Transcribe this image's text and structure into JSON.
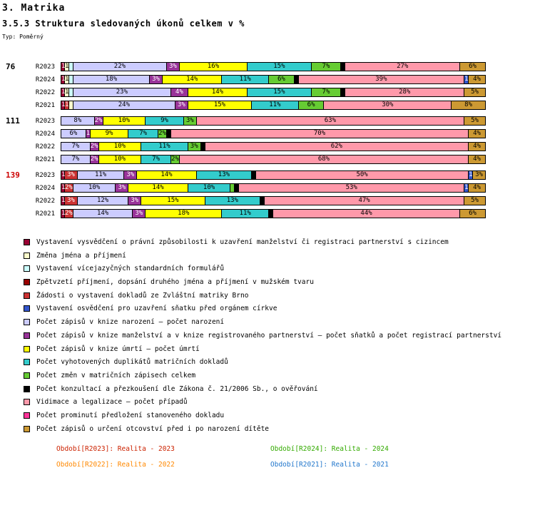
{
  "title": "3. Matrika",
  "subtitle": "3.5.3 Struktura sledovaných úkonů celkem v %",
  "type_label": "Typ: Poměrný",
  "chart_data": {
    "type": "bar",
    "stacked": true,
    "orientation": "horizontal",
    "unit": "%",
    "xlim": [
      0,
      100
    ],
    "grid": false,
    "groups": [
      {
        "label": "76",
        "label_color": "#000000",
        "rows": [
          {
            "label": "R2023",
            "segments": [
              {
                "v": 1,
                "c": "#990033",
                "l": "1"
              },
              {
                "v": 1,
                "c": "#FFFFCC",
                "l": "1"
              },
              {
                "v": 1,
                "c": "#CCFFFF",
                "l": ""
              },
              {
                "v": 22,
                "c": "#CCCCFF",
                "l": "22%"
              },
              {
                "v": 3,
                "c": "#993399",
                "l": "3%"
              },
              {
                "v": 16,
                "c": "#FFFF00",
                "l": "16%"
              },
              {
                "v": 15,
                "c": "#33CCCC",
                "l": "15%"
              },
              {
                "v": 7,
                "c": "#66CC33",
                "l": "7%"
              },
              {
                "v": 1,
                "c": "#000000",
                "l": ""
              },
              {
                "v": 27,
                "c": "#FF99AA",
                "l": "27%"
              },
              {
                "v": 6,
                "c": "#CC9933",
                "l": "6%"
              }
            ]
          },
          {
            "label": "R2024",
            "segments": [
              {
                "v": 1,
                "c": "#990033",
                "l": "1"
              },
              {
                "v": 1,
                "c": "#FFFFCC",
                "l": "1"
              },
              {
                "v": 1,
                "c": "#CCFFFF",
                "l": ""
              },
              {
                "v": 18,
                "c": "#CCCCFF",
                "l": "18%"
              },
              {
                "v": 3,
                "c": "#993399",
                "l": "3%"
              },
              {
                "v": 14,
                "c": "#FFFF00",
                "l": "14%"
              },
              {
                "v": 11,
                "c": "#33CCCC",
                "l": "11%"
              },
              {
                "v": 6,
                "c": "#66CC33",
                "l": "6%"
              },
              {
                "v": 1,
                "c": "#000000",
                "l": ""
              },
              {
                "v": 39,
                "c": "#FF99AA",
                "l": "39%"
              },
              {
                "v": 1,
                "c": "#3355CC",
                "l": "1"
              },
              {
                "v": 4,
                "c": "#CC9933",
                "l": "4%"
              }
            ]
          },
          {
            "label": "R2022",
            "segments": [
              {
                "v": 1,
                "c": "#990033",
                "l": "1"
              },
              {
                "v": 1,
                "c": "#FFFFCC",
                "l": "1"
              },
              {
                "v": 1,
                "c": "#CCFFFF",
                "l": ""
              },
              {
                "v": 23,
                "c": "#CCCCFF",
                "l": "23%"
              },
              {
                "v": 4,
                "c": "#993399",
                "l": "4%"
              },
              {
                "v": 14,
                "c": "#FFFF00",
                "l": "14%"
              },
              {
                "v": 15,
                "c": "#33CCCC",
                "l": "15%"
              },
              {
                "v": 7,
                "c": "#66CC33",
                "l": "7%"
              },
              {
                "v": 1,
                "c": "#000000",
                "l": ""
              },
              {
                "v": 28,
                "c": "#FF99AA",
                "l": "28%"
              },
              {
                "v": 5,
                "c": "#CC9933",
                "l": "5%"
              }
            ]
          },
          {
            "label": "R2021",
            "segments": [
              {
                "v": 1,
                "c": "#990033",
                "l": "1"
              },
              {
                "v": 1,
                "c": "#CC3333",
                "l": "1"
              },
              {
                "v": 1,
                "c": "#FFFFCC",
                "l": ""
              },
              {
                "v": 24,
                "c": "#CCCCFF",
                "l": "24%"
              },
              {
                "v": 3,
                "c": "#993399",
                "l": "3%"
              },
              {
                "v": 15,
                "c": "#FFFF00",
                "l": "15%"
              },
              {
                "v": 11,
                "c": "#33CCCC",
                "l": "11%"
              },
              {
                "v": 6,
                "c": "#66CC33",
                "l": "6%"
              },
              {
                "v": 30,
                "c": "#FF99AA",
                "l": "30%"
              },
              {
                "v": 8,
                "c": "#CC9933",
                "l": "8%"
              }
            ]
          }
        ]
      },
      {
        "label": "111",
        "label_color": "#000000",
        "rows": [
          {
            "label": "R2023",
            "segments": [
              {
                "v": 8,
                "c": "#CCCCFF",
                "l": "8%"
              },
              {
                "v": 2,
                "c": "#993399",
                "l": "2%"
              },
              {
                "v": 10,
                "c": "#FFFF00",
                "l": "10%"
              },
              {
                "v": 9,
                "c": "#33CCCC",
                "l": "9%"
              },
              {
                "v": 3,
                "c": "#66CC33",
                "l": "3%"
              },
              {
                "v": 63,
                "c": "#FF99AA",
                "l": "63%"
              },
              {
                "v": 5,
                "c": "#CC9933",
                "l": "5%"
              }
            ]
          },
          {
            "label": "R2024",
            "segments": [
              {
                "v": 6,
                "c": "#CCCCFF",
                "l": "6%"
              },
              {
                "v": 1,
                "c": "#993399",
                "l": "1"
              },
              {
                "v": 9,
                "c": "#FFFF00",
                "l": "9%"
              },
              {
                "v": 7,
                "c": "#33CCCC",
                "l": "7%"
              },
              {
                "v": 2,
                "c": "#66CC33",
                "l": "2%"
              },
              {
                "v": 1,
                "c": "#000000",
                "l": ""
              },
              {
                "v": 70,
                "c": "#FF99AA",
                "l": "70%"
              },
              {
                "v": 4,
                "c": "#CC9933",
                "l": "4%"
              }
            ]
          },
          {
            "label": "R2022",
            "segments": [
              {
                "v": 7,
                "c": "#CCCCFF",
                "l": "7%"
              },
              {
                "v": 2,
                "c": "#993399",
                "l": "2%"
              },
              {
                "v": 10,
                "c": "#FFFF00",
                "l": "10%"
              },
              {
                "v": 11,
                "c": "#33CCCC",
                "l": "11%"
              },
              {
                "v": 3,
                "c": "#66CC33",
                "l": "3%"
              },
              {
                "v": 1,
                "c": "#000000",
                "l": ""
              },
              {
                "v": 62,
                "c": "#FF99AA",
                "l": "62%"
              },
              {
                "v": 4,
                "c": "#CC9933",
                "l": "4%"
              }
            ]
          },
          {
            "label": "R2021",
            "segments": [
              {
                "v": 7,
                "c": "#CCCCFF",
                "l": "7%"
              },
              {
                "v": 2,
                "c": "#993399",
                "l": "2%"
              },
              {
                "v": 10,
                "c": "#FFFF00",
                "l": "10%"
              },
              {
                "v": 7,
                "c": "#33CCCC",
                "l": "7%"
              },
              {
                "v": 2,
                "c": "#66CC33",
                "l": "2%"
              },
              {
                "v": 68,
                "c": "#FF99AA",
                "l": "68%"
              },
              {
                "v": 4,
                "c": "#CC9933",
                "l": "4%"
              }
            ]
          }
        ]
      },
      {
        "label": "139",
        "label_color": "#CC0000",
        "rows": [
          {
            "label": "R2023",
            "segments": [
              {
                "v": 1,
                "c": "#990033",
                "l": "1"
              },
              {
                "v": 3,
                "c": "#CC3333",
                "l": "3%"
              },
              {
                "v": 11,
                "c": "#CCCCFF",
                "l": "11%"
              },
              {
                "v": 3,
                "c": "#993399",
                "l": "3%"
              },
              {
                "v": 14,
                "c": "#FFFF00",
                "l": "14%"
              },
              {
                "v": 13,
                "c": "#33CCCC",
                "l": "13%"
              },
              {
                "v": 1,
                "c": "#000000",
                "l": ""
              },
              {
                "v": 50,
                "c": "#FF99AA",
                "l": "50%"
              },
              {
                "v": 1,
                "c": "#3355CC",
                "l": "1"
              },
              {
                "v": 3,
                "c": "#CC9933",
                "l": "3%"
              }
            ]
          },
          {
            "label": "R2024",
            "segments": [
              {
                "v": 1,
                "c": "#990033",
                "l": "1"
              },
              {
                "v": 2,
                "c": "#CC3333",
                "l": "2%"
              },
              {
                "v": 10,
                "c": "#CCCCFF",
                "l": "10%"
              },
              {
                "v": 3,
                "c": "#993399",
                "l": "3%"
              },
              {
                "v": 14,
                "c": "#FFFF00",
                "l": "14%"
              },
              {
                "v": 10,
                "c": "#33CCCC",
                "l": "10%"
              },
              {
                "v": 1,
                "c": "#66CC33",
                "l": ""
              },
              {
                "v": 1,
                "c": "#000000",
                "l": ""
              },
              {
                "v": 53,
                "c": "#FF99AA",
                "l": "53%"
              },
              {
                "v": 1,
                "c": "#3355CC",
                "l": "1"
              },
              {
                "v": 4,
                "c": "#CC9933",
                "l": "4%"
              }
            ]
          },
          {
            "label": "R2022",
            "segments": [
              {
                "v": 1,
                "c": "#990033",
                "l": "1"
              },
              {
                "v": 3,
                "c": "#CC3333",
                "l": "3%"
              },
              {
                "v": 12,
                "c": "#CCCCFF",
                "l": "12%"
              },
              {
                "v": 3,
                "c": "#993399",
                "l": "3%"
              },
              {
                "v": 15,
                "c": "#FFFF00",
                "l": "15%"
              },
              {
                "v": 13,
                "c": "#33CCCC",
                "l": "13%"
              },
              {
                "v": 1,
                "c": "#000000",
                "l": ""
              },
              {
                "v": 47,
                "c": "#FF99AA",
                "l": "47%"
              },
              {
                "v": 5,
                "c": "#CC9933",
                "l": "5%"
              }
            ]
          },
          {
            "label": "R2021",
            "segments": [
              {
                "v": 1,
                "c": "#990033",
                "l": "1"
              },
              {
                "v": 2,
                "c": "#CC3333",
                "l": "2%"
              },
              {
                "v": 14,
                "c": "#CCCCFF",
                "l": "14%"
              },
              {
                "v": 3,
                "c": "#993399",
                "l": "3%"
              },
              {
                "v": 18,
                "c": "#FFFF00",
                "l": "18%"
              },
              {
                "v": 11,
                "c": "#33CCCC",
                "l": "11%"
              },
              {
                "v": 1,
                "c": "#000000",
                "l": ""
              },
              {
                "v": 44,
                "c": "#FF99AA",
                "l": "44%"
              },
              {
                "v": 6,
                "c": "#CC9933",
                "l": "6%"
              }
            ]
          }
        ]
      }
    ],
    "legend": [
      {
        "label": "Vystavení vysvědčení o právní způsobilosti k uzavření manželství či registraci partnerství s cizincem",
        "color": "#990033"
      },
      {
        "label": "Změna jména a příjmení",
        "color": "#FFFFCC"
      },
      {
        "label": "Vystavení vícejazyčných standardních formulářů",
        "color": "#CCFFFF"
      },
      {
        "label": "Zpětvzetí příjmení, dopsání druhého jména a příjmení v mužském tvaru",
        "color": "#990000"
      },
      {
        "label": "Žádosti o vystavení dokladů ze Zvláštní matriky Brno",
        "color": "#CC3333"
      },
      {
        "label": "Vystavení osvědčení pro uzavření sňatku před orgánem církve",
        "color": "#3355CC"
      },
      {
        "label": "Počet zápisů v knize narození – počet narození",
        "color": "#CCCCFF"
      },
      {
        "label": "Počet zápisů v knize manželství a v knize registrovaného partnerství – počet sňatků a počet registrací partnerství",
        "color": "#993399"
      },
      {
        "label": "Počet zápisů v knize úmrtí – počet úmrtí",
        "color": "#FFFF00"
      },
      {
        "label": "Počet vyhotovených duplikátů matričních dokladů",
        "color": "#33CCCC"
      },
      {
        "label": "Počet změn v matričních zápisech celkem",
        "color": "#66CC33"
      },
      {
        "label": "Počet  konzultací a přezkoušení dle Zákona č. 21/2006 Sb., o ověřování",
        "color": "#000000"
      },
      {
        "label": "Vidimace a legalizace – počet případů",
        "color": "#FF99AA"
      },
      {
        "label": "Počet prominutí předložení stanoveného dokladu",
        "color": "#FF3399"
      },
      {
        "label": "Počet zápisů o určení otcovství před i po narození dítěte",
        "color": "#CC9933"
      }
    ],
    "periods": [
      {
        "label": "Období[R2023]: Realita - 2023",
        "color": "#CC2200"
      },
      {
        "label": "Období[R2024]: Realita - 2024",
        "color": "#33AA00"
      },
      {
        "label": "Období[R2022]: Realita - 2022",
        "color": "#FF8800"
      },
      {
        "label": "Období[R2021]: Realita - 2021",
        "color": "#2277CC"
      }
    ]
  }
}
